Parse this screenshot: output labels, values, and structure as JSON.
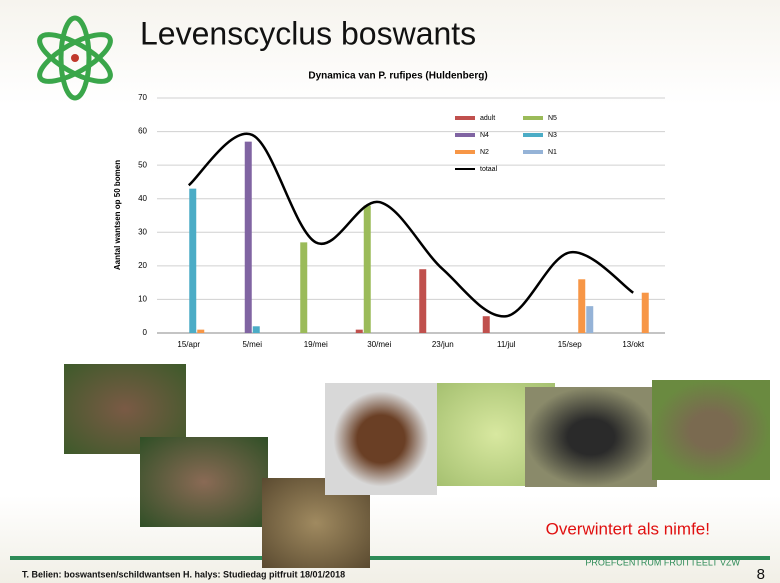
{
  "slide": {
    "title": "Levenscyclus boswants",
    "note": "Overwintert als nimfe!",
    "organisation": "PROEFCENTRUM FRUITTEELT VZW",
    "footer": "T. Belien: boswantsen/schildwantsen H. halys: Studiedag pitfruit 18/01/2018",
    "page": "8"
  },
  "chart_data": {
    "type": "bar",
    "title": "Dynamica van P. rufipes (Huldenberg)",
    "y_label": "Aantal wantsen op 50 bomen",
    "categories": [
      "15/apr",
      "5/mei",
      "19/mei",
      "30/mei",
      "23/jun",
      "11/jul",
      "15/sep",
      "13/okt"
    ],
    "series": [
      {
        "name": "adult",
        "color": "#c0504d",
        "values": [
          0,
          0,
          0,
          1,
          19,
          5,
          0,
          0
        ]
      },
      {
        "name": "N5",
        "color": "#9bbb59",
        "values": [
          0,
          0,
          27,
          38,
          0,
          0,
          0,
          0
        ]
      },
      {
        "name": "N4",
        "color": "#8064a2",
        "values": [
          0,
          57,
          0,
          0,
          0,
          0,
          0,
          0
        ]
      },
      {
        "name": "N3",
        "color": "#4bacc6",
        "values": [
          43,
          2,
          0,
          0,
          0,
          0,
          0,
          0
        ]
      },
      {
        "name": "N2",
        "color": "#f79646",
        "values": [
          1,
          0,
          0,
          0,
          0,
          0,
          16,
          12
        ]
      },
      {
        "name": "N1",
        "color": "#95b3d7",
        "values": [
          0,
          0,
          0,
          0,
          0,
          0,
          8,
          0
        ]
      },
      {
        "name": "totaal",
        "color": "#000000",
        "type": "line",
        "values": [
          44,
          59,
          27,
          39,
          19,
          5,
          24,
          12
        ]
      }
    ],
    "ylim": [
      0,
      70
    ],
    "yticks": [
      0,
      10,
      20,
      30,
      40,
      50,
      60,
      70
    ],
    "grid": true
  }
}
